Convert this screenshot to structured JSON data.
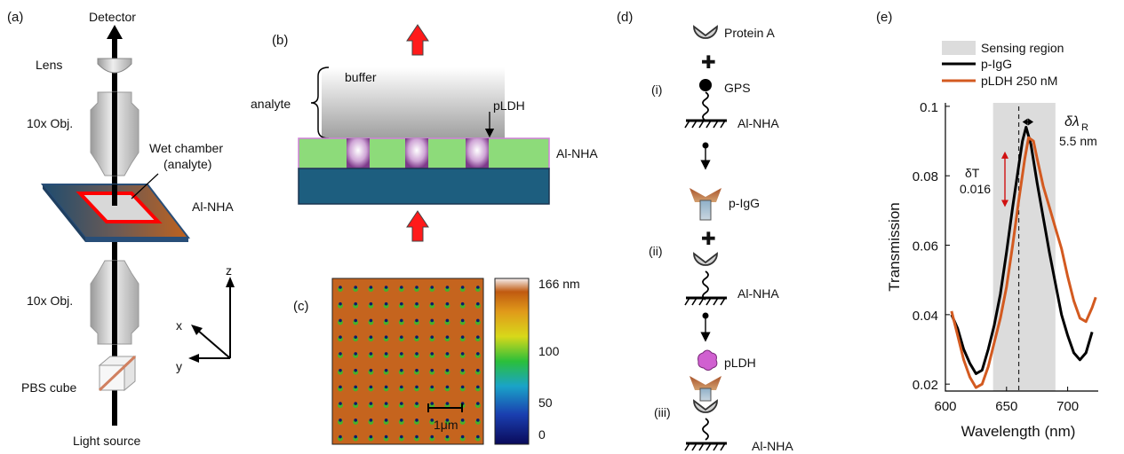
{
  "panels": {
    "a": {
      "label": "(a)",
      "detector": "Detector",
      "lens": "Lens",
      "obj_top": "10x Obj.",
      "wet_chamber_line1": "Wet chamber",
      "wet_chamber_line2": "(analyte)",
      "sample": "Al-NHA",
      "obj_bottom": "10x Obj.",
      "pbs": "PBS cube",
      "light": "Light source",
      "axis_x": "x",
      "axis_y": "y",
      "axis_z": "z"
    },
    "b": {
      "label": "(b)",
      "buffer": "buffer",
      "analyte": "analyte",
      "pldh": "pLDH",
      "al_nha": "Al-NHA"
    },
    "c": {
      "label": "(c)",
      "scale_max": "166 nm",
      "scale_100": "100",
      "scale_50": "50",
      "scale_0": "0",
      "scalebar": "1μm"
    },
    "d": {
      "label": "(d)",
      "step_i": "(i)",
      "step_ii": "(ii)",
      "step_iii": "(iii)",
      "protein_a": "Protein A",
      "gps": "GPS",
      "al_nha_1": "Al-NHA",
      "pigg": "p-IgG",
      "al_nha_2": "Al-NHA",
      "pldh": "pLDH",
      "al_nha_3": "Al-NHA"
    },
    "e": {
      "label": "(e)",
      "delta_T_symbol": "δT",
      "delta_T_value": "0.016",
      "delta_lambda_value": "5.5 nm"
    }
  },
  "chart_data": {
    "type": "line",
    "xlabel": "Wavelength (nm)",
    "ylabel": "Transmission",
    "xlim": [
      600,
      725
    ],
    "ylim": [
      0.018,
      0.101
    ],
    "xticks": [
      600,
      650,
      700
    ],
    "yticks": [
      0.02,
      0.04,
      0.06,
      0.08,
      0.1
    ],
    "ytick_labels": [
      "0.02",
      "0.04",
      "0.06",
      "0.08",
      "0.1"
    ],
    "legend_position": "top-left",
    "sensing_region": {
      "label": "Sensing region",
      "x_range": [
        639,
        690
      ],
      "color": "#dcdcdc"
    },
    "resonance_marker_x": 660,
    "series": [
      {
        "name": "p-IgG",
        "color": "#000000",
        "x": [
          605,
          610,
          615,
          620,
          625,
          630,
          635,
          640,
          645,
          650,
          655,
          660,
          663,
          666,
          670,
          675,
          680,
          685,
          690,
          695,
          700,
          705,
          710,
          715,
          720
        ],
        "y": [
          0.04,
          0.036,
          0.03,
          0.026,
          0.023,
          0.024,
          0.03,
          0.037,
          0.046,
          0.058,
          0.071,
          0.083,
          0.09,
          0.094,
          0.089,
          0.078,
          0.068,
          0.058,
          0.049,
          0.04,
          0.034,
          0.029,
          0.027,
          0.029,
          0.035
        ]
      },
      {
        "name": "pLDH 250 nM",
        "color": "#d35a20",
        "x": [
          605,
          610,
          615,
          620,
          625,
          630,
          635,
          640,
          645,
          650,
          655,
          660,
          665,
          668,
          672,
          675,
          680,
          685,
          690,
          695,
          700,
          705,
          710,
          715,
          720,
          723
        ],
        "y": [
          0.041,
          0.034,
          0.027,
          0.022,
          0.019,
          0.02,
          0.025,
          0.032,
          0.039,
          0.048,
          0.06,
          0.073,
          0.085,
          0.091,
          0.09,
          0.085,
          0.077,
          0.071,
          0.065,
          0.059,
          0.051,
          0.044,
          0.039,
          0.038,
          0.042,
          0.045
        ]
      }
    ]
  }
}
